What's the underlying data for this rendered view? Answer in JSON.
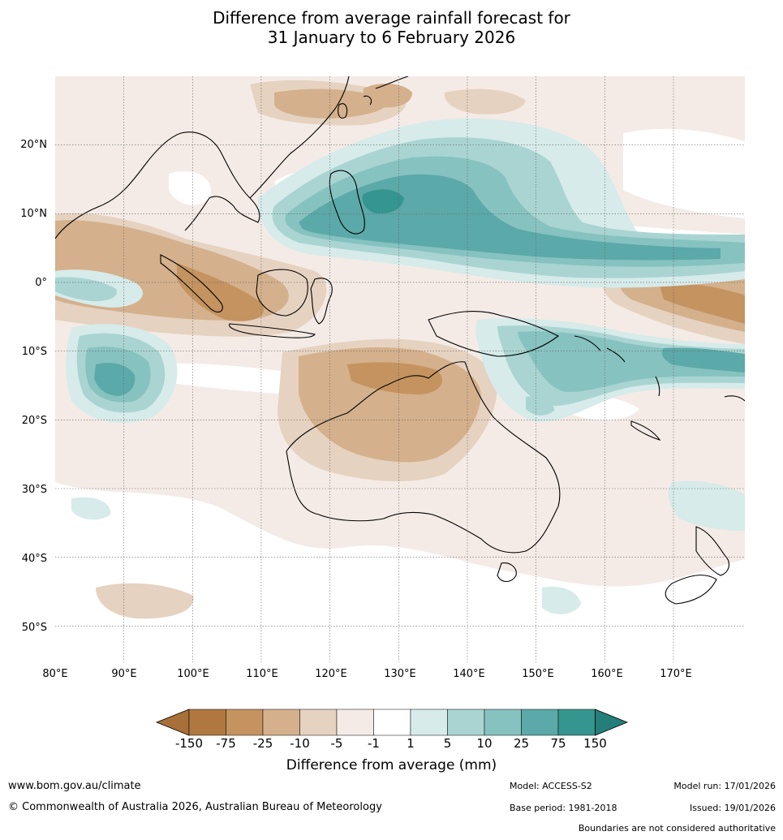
{
  "title": {
    "line1": "Difference from average rainfall forecast for",
    "line2": "31 January to 6 February 2026"
  },
  "map": {
    "lat_labels": [
      "20°N",
      "10°N",
      "0°",
      "10°S",
      "20°S",
      "30°S",
      "40°S",
      "50°S"
    ],
    "lon_labels": [
      "80°E",
      "90°E",
      "100°E",
      "110°E",
      "120°E",
      "130°E",
      "140°E",
      "150°E",
      "160°E",
      "170°E"
    ]
  },
  "colorbar": {
    "ticks": [
      "-150",
      "-75",
      "-25",
      "-10",
      "-5",
      "-1",
      "1",
      "5",
      "10",
      "25",
      "75",
      "150"
    ],
    "colors": [
      "#a87038",
      "#b07840",
      "#c4935f",
      "#d4b08c",
      "#e6d2c0",
      "#f4ebe6",
      "#ffffff",
      "#d6ebea",
      "#a9d4d2",
      "#86c2c0",
      "#5ba9a8",
      "#35958f",
      "#247e79"
    ],
    "label": "Difference from average (mm)"
  },
  "footer": {
    "website": "www.bom.gov.au/climate",
    "copyright": "© Commonwealth of Australia 2026, Australian Bureau of Meteorology",
    "model": "Model: ACCESS-S2",
    "base_period": "Base period: 1981-2018",
    "model_run": "Model run: 17/01/2026",
    "issued": "Issued: 19/01/2026",
    "disclaimer": "Boundaries are not considered authoritative"
  }
}
